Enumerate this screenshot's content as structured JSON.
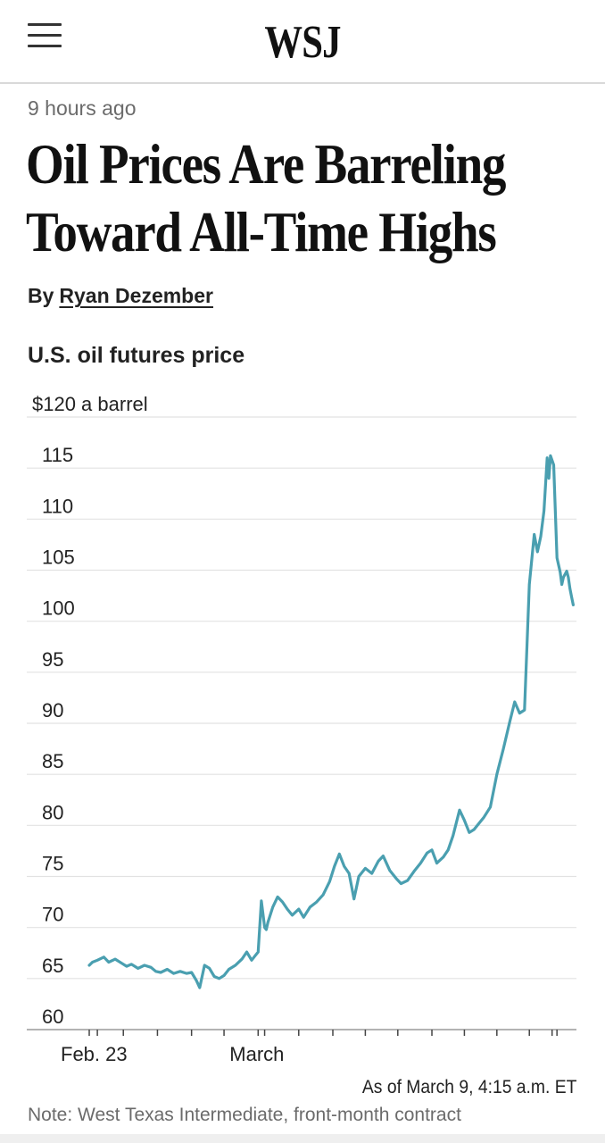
{
  "header": {
    "logo": "WSJ",
    "menu_icon": "hamburger-menu-icon"
  },
  "article": {
    "timestamp": "9 hours ago",
    "headline_line1": "Oil Prices Are Barreling",
    "headline_line2": "Toward All-Time Highs",
    "byline_prefix": "By",
    "author": "Ryan Dezember"
  },
  "chart_data": {
    "type": "line",
    "title": "U.S. oil futures price",
    "ylabel": "$120 a barrel",
    "ylim": [
      60,
      120
    ],
    "yticks": [
      60,
      65,
      70,
      75,
      80,
      85,
      90,
      95,
      100,
      105,
      110,
      115,
      120
    ],
    "ytick_labels": [
      "60",
      "65",
      "70",
      "75",
      "80",
      "85",
      "90",
      "95",
      "100",
      "105",
      "110",
      "115",
      "$120 a barrel"
    ],
    "xlim": [
      0,
      15
    ],
    "x_tick_positions": [
      0,
      0.25,
      1.05,
      2.1,
      3.15,
      4.15,
      5.2,
      5.4,
      6.45,
      7.5,
      8.5,
      9.5,
      10.55,
      11.55,
      12.55,
      13.55,
      14.25,
      14.4
    ],
    "x_labels": [
      {
        "label": "Feb. 23",
        "x": 0
      },
      {
        "label": "March",
        "x": 5.2
      }
    ],
    "color": "#4a9fb0",
    "series": [
      {
        "name": "West Texas Intermediate",
        "x": [
          0,
          0.1,
          0.25,
          0.45,
          0.6,
          0.8,
          1.0,
          1.15,
          1.3,
          1.5,
          1.7,
          1.9,
          2.05,
          2.2,
          2.4,
          2.6,
          2.8,
          3.0,
          3.15,
          3.3,
          3.4,
          3.55,
          3.7,
          3.85,
          4.0,
          4.15,
          4.3,
          4.5,
          4.7,
          4.85,
          5.0,
          5.1,
          5.2,
          5.3,
          5.4,
          5.45,
          5.5,
          5.65,
          5.8,
          5.95,
          6.1,
          6.25,
          6.45,
          6.6,
          6.8,
          7.0,
          7.2,
          7.4,
          7.55,
          7.7,
          7.85,
          8.0,
          8.15,
          8.3,
          8.5,
          8.7,
          8.9,
          9.05,
          9.25,
          9.45,
          9.6,
          9.8,
          10.0,
          10.2,
          10.4,
          10.55,
          10.7,
          10.9,
          11.05,
          11.2,
          11.4,
          11.55,
          11.7,
          11.85,
          12.0,
          12.15,
          12.35,
          12.55,
          12.75,
          12.95,
          13.1,
          13.25,
          13.4,
          13.55,
          13.7,
          13.8,
          13.9,
          14.0,
          14.1,
          14.15,
          14.2,
          14.3,
          14.4,
          14.5,
          14.55,
          14.6,
          14.7,
          14.75,
          14.8,
          14.85,
          14.9
        ],
        "values": [
          66.3,
          66.6,
          66.8,
          67.1,
          66.6,
          66.9,
          66.5,
          66.2,
          66.4,
          66.0,
          66.3,
          66.1,
          65.7,
          65.6,
          65.9,
          65.5,
          65.7,
          65.5,
          65.6,
          64.8,
          64.1,
          66.3,
          66.0,
          65.2,
          65.0,
          65.3,
          65.9,
          66.3,
          66.9,
          67.6,
          66.8,
          67.2,
          67.6,
          72.6,
          70.0,
          69.8,
          70.5,
          72.0,
          73.0,
          72.5,
          71.8,
          71.2,
          71.8,
          71.0,
          72.0,
          72.5,
          73.2,
          74.5,
          76.0,
          77.2,
          76.0,
          75.3,
          72.8,
          75.0,
          75.8,
          75.3,
          76.5,
          77.0,
          75.6,
          74.8,
          74.3,
          74.6,
          75.5,
          76.3,
          77.3,
          77.6,
          76.3,
          76.9,
          77.6,
          79.0,
          81.5,
          80.5,
          79.3,
          79.6,
          80.2,
          80.8,
          81.8,
          85.0,
          87.5,
          90.2,
          92.1,
          91.0,
          91.3,
          103.6,
          108.5,
          106.8,
          108.3,
          110.8,
          116.0,
          114.0,
          116.2,
          115.3,
          106.2,
          104.8,
          103.6,
          104.3,
          104.9,
          104.3,
          103.2,
          102.4,
          101.6
        ]
      }
    ]
  },
  "footer": {
    "as_of": "As of March 9, 4:15 a.m. ET",
    "note": "Note: West Texas Intermediate, front-month contract"
  }
}
